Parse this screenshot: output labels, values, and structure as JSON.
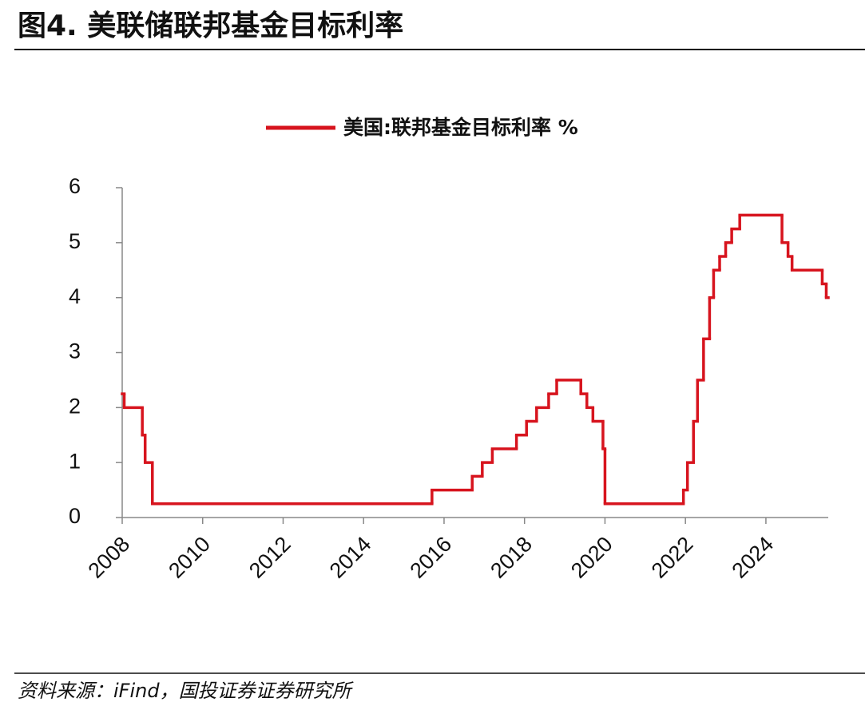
{
  "chart_data": {
    "type": "line",
    "step": "post",
    "title": "图4. 美联储联邦基金目标利率",
    "source": "资料来源：iFind，国投证券证券研究所",
    "series": [
      {
        "name": "美国:联邦基金目标利率 %",
        "color": "#d7141e",
        "x": [
          2008.0,
          2008.05,
          2008.5,
          2008.57,
          2008.75,
          2015.7,
          2016.7,
          2016.95,
          2017.2,
          2017.8,
          2018.05,
          2018.3,
          2018.6,
          2018.8,
          2019.4,
          2019.55,
          2019.7,
          2019.95,
          2020.0,
          2021.95,
          2022.05,
          2022.2,
          2022.3,
          2022.45,
          2022.6,
          2022.7,
          2022.85,
          2023.0,
          2023.15,
          2023.35,
          2024.4,
          2024.55,
          2024.65,
          2025.4,
          2025.5
        ],
        "values": [
          2.25,
          2.0,
          1.5,
          1.0,
          0.25,
          0.5,
          0.75,
          1.0,
          1.25,
          1.5,
          1.75,
          2.0,
          2.25,
          2.5,
          2.25,
          2.0,
          1.75,
          1.25,
          0.25,
          0.5,
          1.0,
          1.75,
          2.5,
          3.25,
          4.0,
          4.5,
          4.75,
          5.0,
          5.25,
          5.5,
          5.0,
          4.75,
          4.5,
          4.25,
          4.0
        ]
      }
    ],
    "xlim": [
      2008,
      2025.55
    ],
    "xticks": [
      2008,
      2010,
      2012,
      2014,
      2016,
      2018,
      2020,
      2022,
      2024
    ],
    "ylim": [
      0,
      6
    ],
    "yticks": [
      0,
      1,
      2,
      3,
      4,
      5,
      6
    ],
    "grid": false
  }
}
